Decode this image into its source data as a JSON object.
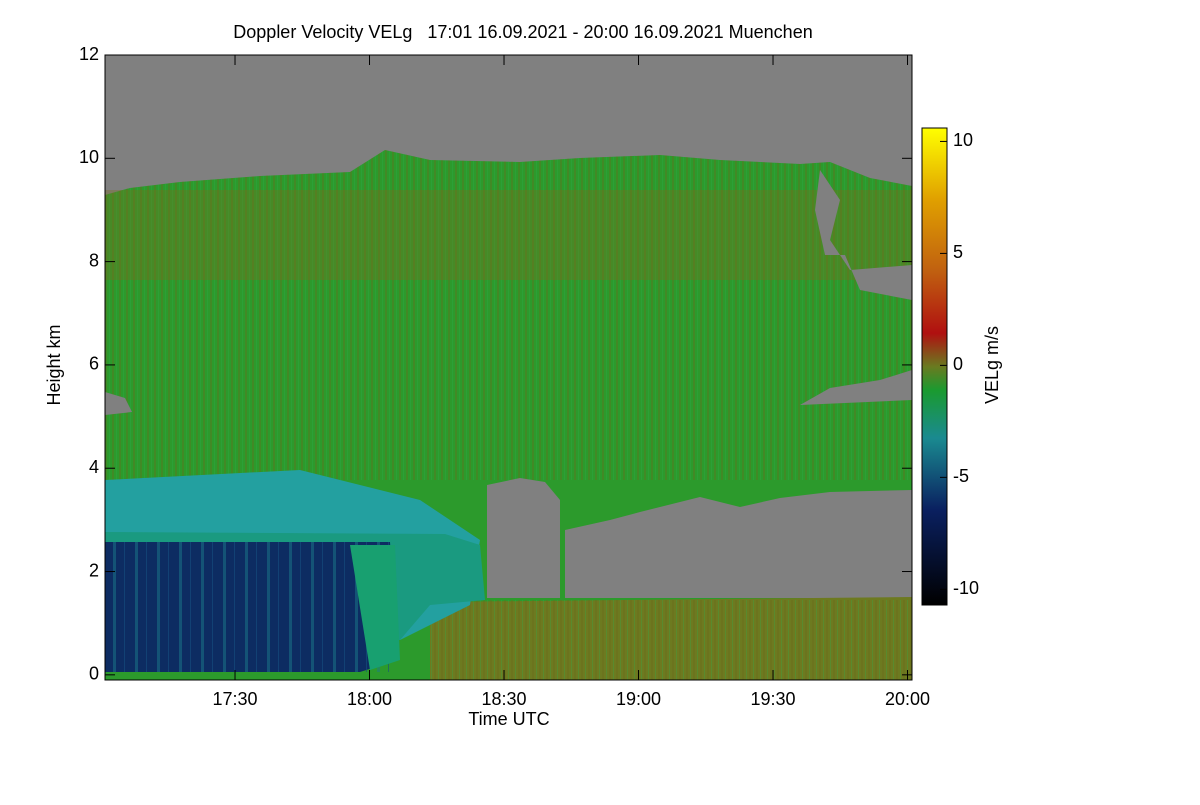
{
  "chart_data": {
    "type": "heatmap",
    "title": "Doppler Velocity VELg   17:01 16.09.2021 - 20:00 16.09.2021 Muenchen",
    "xlabel": "Time UTC",
    "ylabel": "Height km",
    "colorbar_label": "VELg m/s",
    "xlim": [
      1021,
      1201
    ],
    "xticks": [
      {
        "value": 1050,
        "label": "17:30"
      },
      {
        "value": 1080,
        "label": "18:00"
      },
      {
        "value": 1110,
        "label": "18:30"
      },
      {
        "value": 1140,
        "label": "19:00"
      },
      {
        "value": 1170,
        "label": "19:30"
      },
      {
        "value": 1200,
        "label": "20:00"
      }
    ],
    "ylim": [
      -0.1,
      12
    ],
    "yticks": [
      0,
      2,
      4,
      6,
      8,
      10,
      12
    ],
    "clim": [
      -10.7,
      10.6
    ],
    "cticks": [
      -10,
      -5,
      0,
      5,
      10
    ]
  }
}
